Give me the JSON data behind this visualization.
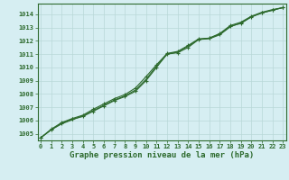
{
  "title": "Graphe pression niveau de la mer (hPa)",
  "xlabel_hours": [
    0,
    1,
    2,
    3,
    4,
    5,
    6,
    7,
    8,
    9,
    10,
    11,
    12,
    13,
    14,
    15,
    16,
    17,
    18,
    19,
    20,
    21,
    22,
    23
  ],
  "ylim": [
    1004.5,
    1014.8
  ],
  "yticks": [
    1005,
    1006,
    1007,
    1008,
    1009,
    1010,
    1011,
    1012,
    1013,
    1014
  ],
  "bg_color": "#d6eef2",
  "grid_color": "#b8d8d8",
  "line_color": "#2d6a2d",
  "line1": [
    1004.7,
    1005.3,
    1005.8,
    1006.1,
    1006.3,
    1006.7,
    1007.1,
    1007.5,
    1007.8,
    1008.2,
    1009.0,
    1010.0,
    1011.0,
    1011.1,
    1011.5,
    1012.1,
    1012.2,
    1012.5,
    1013.1,
    1013.3,
    1013.8,
    1014.1,
    1014.3,
    1014.5
  ],
  "line2": [
    1004.7,
    1005.35,
    1005.85,
    1006.15,
    1006.4,
    1006.85,
    1007.25,
    1007.65,
    1007.95,
    1008.45,
    1009.3,
    1010.2,
    1011.05,
    1011.2,
    1011.65,
    1012.15,
    1012.2,
    1012.55,
    1013.15,
    1013.4,
    1013.85,
    1014.15,
    1014.35,
    1014.5
  ],
  "line3": [
    1004.7,
    1005.3,
    1005.75,
    1006.05,
    1006.35,
    1006.75,
    1007.15,
    1007.55,
    1007.85,
    1008.3,
    1009.1,
    1010.1,
    1011.0,
    1011.15,
    1011.6,
    1012.1,
    1012.15,
    1012.45,
    1013.05,
    1013.35,
    1013.8,
    1014.1,
    1014.3,
    1014.5
  ],
  "marker": "+",
  "marker_size": 3.5,
  "linewidth": 0.8,
  "title_fontsize": 6.5,
  "tick_fontsize": 5.0,
  "figsize": [
    3.2,
    2.0
  ],
  "dpi": 100
}
